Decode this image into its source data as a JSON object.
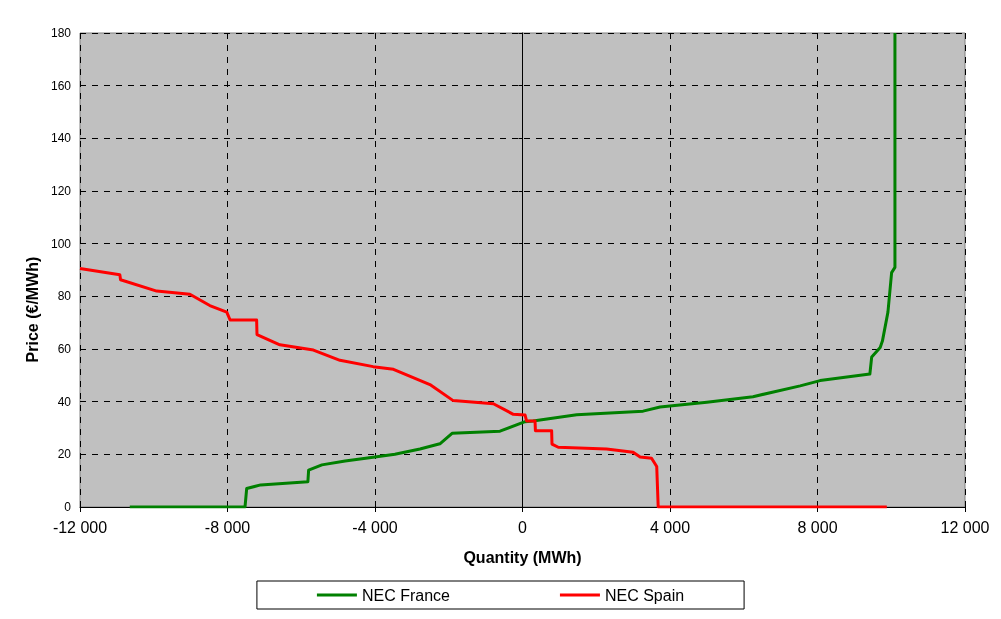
{
  "chart_data": {
    "type": "line",
    "xlabel": "Quantity (MWh)",
    "ylabel": "Price (€/MWh)",
    "xlim": [
      -12000,
      12000
    ],
    "xticks": [
      {
        "value": -12000,
        "label": "-12 000"
      },
      {
        "value": -8000,
        "label": "-8 000"
      },
      {
        "value": -4000,
        "label": "-4 000"
      },
      0,
      {
        "value": 4000,
        "label": "4 000"
      },
      {
        "value": 8000,
        "label": "8 000"
      },
      {
        "value": 12000,
        "label": "12 000"
      }
    ],
    "ylim": [
      0,
      180
    ],
    "yticks": [
      0,
      20,
      40,
      60,
      80,
      100,
      120,
      140,
      160,
      180
    ],
    "grid": true,
    "legend": "bottom",
    "marker": "none",
    "line_style": "solid",
    "series": [
      {
        "name": "NEC France",
        "color": "#008000",
        "x": [
          -10650,
          -7525,
          -7480,
          -7100,
          -5820,
          -5800,
          -5440,
          -4810,
          -4000,
          -3460,
          -2780,
          -2240,
          -1910,
          -610,
          70,
          285,
          1470,
          3270,
          3730,
          5000,
          6250,
          7530,
          8070,
          9420,
          9470,
          9700,
          9760,
          9910,
          10010,
          10100,
          10100
        ],
        "values": [
          0,
          0,
          7,
          8.4,
          9.6,
          14,
          16,
          17.5,
          19,
          20,
          22,
          24,
          28,
          28.8,
          32.4,
          32.7,
          35,
          36.4,
          38,
          39.8,
          41.9,
          46,
          48,
          50.5,
          57,
          60.6,
          63,
          74,
          89,
          91,
          180
        ]
      },
      {
        "name": "NEC Spain",
        "color": "#ff0000",
        "x": [
          -12000,
          -10920,
          -10900,
          -9920,
          -9020,
          -8480,
          -8020,
          -7930,
          -7210,
          -7200,
          -6580,
          -5670,
          -4950,
          -4050,
          -3500,
          -2510,
          -1880,
          -790,
          -250,
          70,
          110,
          340,
          350,
          790,
          800,
          970,
          2280,
          3000,
          3190,
          3500,
          3640,
          3680,
          9880
        ],
        "values": [
          90.6,
          88.2,
          86.3,
          82,
          80.8,
          76.5,
          74,
          71,
          71,
          65.5,
          61.6,
          59.6,
          55.7,
          53.3,
          52.3,
          46.5,
          40.4,
          39.2,
          35.2,
          34.9,
          32.7,
          32.7,
          29,
          29,
          23.9,
          22.7,
          22,
          20.8,
          19,
          18.5,
          15.4,
          0,
          0
        ]
      }
    ]
  }
}
